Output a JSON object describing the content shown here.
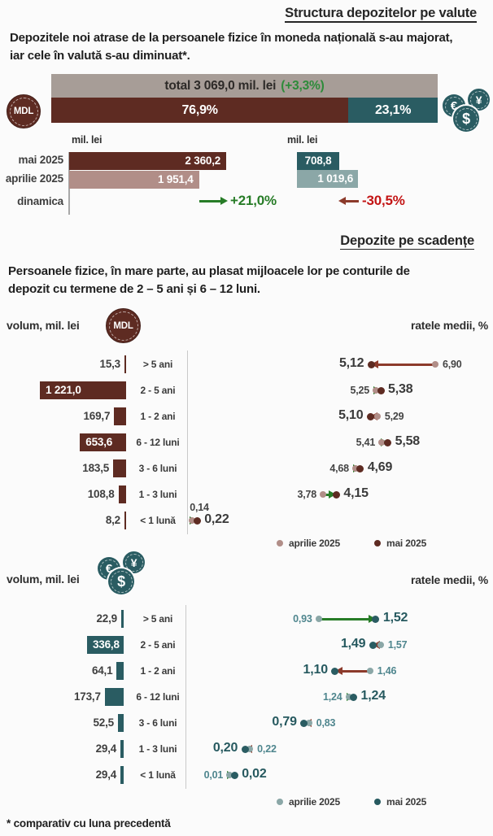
{
  "colors": {
    "background": "#fbfbfb",
    "mdl_dark": "#5e2b22",
    "mdl_light": "#b18e88",
    "fx_dark": "#2a5c62",
    "fx_light": "#8ba7a7",
    "total_gray": "#a79d97",
    "green": "#277c27",
    "green_title": "#2e8b3a",
    "red": "#c31414",
    "red_arrow": "#8c3a2b",
    "text_dark": "#3a3a3a",
    "fx_text_dark": "#26595f",
    "fx_text_light": "#4f868e",
    "axis_line": "#c9c9c9"
  },
  "header": {
    "title": "Structura depozitelor pe valute",
    "intro_line1": "Depozitele noi atrase de la persoanele fizice în moneda națională s-au majorat,",
    "intro_line2": "iar cele în valută s-au diminuat*."
  },
  "maturity_section": {
    "title": "Depozite pe scadențe",
    "intro_line1": "Persoanele fizice, în mare parte, au plasat mijloacele lor pe conturile de",
    "intro_line2": "depozit cu termene de 2 – 5 ani și 6 – 12 luni.",
    "volume_axis_label": "volum, mil. lei",
    "rates_axis_label": "ratele medii, %"
  },
  "icons": {
    "mdl_coin_text": "MDL",
    "euro_symbol": "€",
    "yen_symbol": "¥",
    "dollar_symbol": "$"
  },
  "footnote": "* comparativ cu luna precedentă",
  "chart_data": [
    {
      "type": "bar",
      "name": "structura-pe-valute",
      "stacked": true,
      "title": "total 3 069,0 mil. lei",
      "title_change": "(+3,3%)",
      "total_value": 3069.0,
      "total_change_pct": 3.3,
      "segments": [
        {
          "name": "MDL",
          "share_pct": 76.9,
          "label": "76,9%"
        },
        {
          "name": "valuta",
          "share_pct": 23.1,
          "label": "23,1%"
        }
      ]
    },
    {
      "type": "bar",
      "name": "depozite-noi-pe-luni",
      "unit": "mil. lei",
      "categories": [
        "mai 2025",
        "aprilie 2025",
        "dinamica"
      ],
      "series": [
        {
          "name": "MDL",
          "values": [
            2360.2,
            1951.4
          ],
          "value_labels": [
            "2 360,2",
            "1 951,4"
          ],
          "change_label": "+21,0%",
          "change_pct": 21.0,
          "trend": "up"
        },
        {
          "name": "valuta",
          "values": [
            708.8,
            1019.6
          ],
          "value_labels": [
            "708,8",
            "1 019,6"
          ],
          "change_label": "-30,5%",
          "change_pct": -30.5,
          "trend": "down"
        }
      ]
    },
    {
      "type": "bar+dumbbell",
      "name": "depozite-mdl-pe-scadente",
      "currency": "MDL",
      "volume_unit": "mil. lei",
      "rate_unit": "%",
      "categories": [
        "> 5 ani",
        "2 - 5 ani",
        "1 - 2 ani",
        "6 - 12 luni",
        "3 - 6 luni",
        "1 - 3 luni",
        "< 1 lună"
      ],
      "volumes": [
        15.3,
        1221.0,
        169.7,
        653.6,
        183.5,
        108.8,
        8.2
      ],
      "volume_labels": [
        "15,3",
        "1 221,0",
        "169,7",
        "653,6",
        "183,5",
        "108,8",
        "8,2"
      ],
      "rates_aprilie": [
        6.9,
        5.25,
        5.29,
        5.41,
        4.68,
        3.78,
        0.14
      ],
      "rates_mai": [
        5.12,
        5.38,
        5.1,
        5.58,
        4.69,
        4.15,
        0.22
      ],
      "rate_labels_aprilie": [
        "6,90",
        "5,25",
        "5,29",
        "5,41",
        "4,68",
        "3,78",
        "0,14"
      ],
      "rate_labels_mai": [
        "5,12",
        "5,38",
        "5,10",
        "5,58",
        "4,69",
        "4,15",
        "0,22"
      ],
      "legend": [
        "aprilie 2025",
        "mai 2025"
      ]
    },
    {
      "type": "bar+dumbbell",
      "name": "depozite-valuta-pe-scadente",
      "currency": "valuta",
      "volume_unit": "mil. lei",
      "rate_unit": "%",
      "categories": [
        "> 5 ani",
        "2 - 5 ani",
        "1 - 2 ani",
        "6 - 12 luni",
        "3 - 6 luni",
        "1 - 3 luni",
        "< 1 lună"
      ],
      "volumes": [
        22.9,
        336.8,
        64.1,
        173.7,
        52.5,
        29.4,
        29.4
      ],
      "volume_labels": [
        "22,9",
        "336,8",
        "64,1",
        "173,7",
        "52,5",
        "29,4",
        "29,4"
      ],
      "rates_aprilie": [
        0.93,
        1.57,
        1.46,
        1.24,
        0.83,
        0.22,
        0.01
      ],
      "rates_mai": [
        1.52,
        1.49,
        1.1,
        1.24,
        0.79,
        0.2,
        0.02
      ],
      "rate_labels_aprilie": [
        "0,93",
        "1,57",
        "1,46",
        "1,24",
        "0,83",
        "0,22",
        "0,01"
      ],
      "rate_labels_mai": [
        "1,52",
        "1,49",
        "1,10",
        "1,24",
        "0,79",
        "0,20",
        "0,02"
      ],
      "legend": [
        "aprilie 2025",
        "mai 2025"
      ]
    }
  ]
}
